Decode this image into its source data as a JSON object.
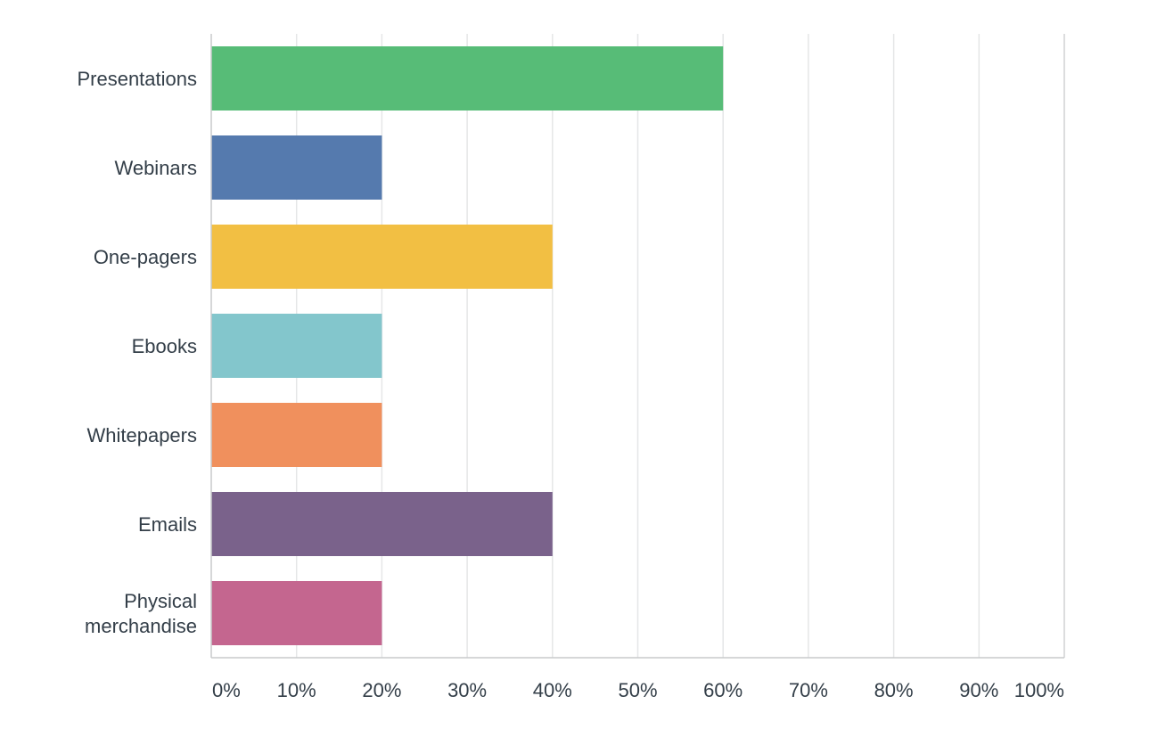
{
  "chart_data": {
    "type": "bar",
    "orientation": "horizontal",
    "categories": [
      "Presentations",
      "Webinars",
      "One-pagers",
      "Ebooks",
      "Whitepapers",
      "Emails",
      "Physical merchandise"
    ],
    "values": [
      60,
      20,
      40,
      20,
      20,
      40,
      20
    ],
    "unit": "%",
    "colors": [
      "#57bc77",
      "#557aae",
      "#f2bf43",
      "#83c6cc",
      "#f0905d",
      "#7a628b",
      "#c4668f"
    ],
    "xlim": [
      0,
      100
    ],
    "xticks": [
      "0%",
      "10%",
      "20%",
      "30%",
      "40%",
      "50%",
      "60%",
      "70%",
      "80%",
      "90%",
      "100%"
    ],
    "grid": true,
    "legend": "none",
    "title": "",
    "xlabel": "",
    "ylabel": ""
  }
}
